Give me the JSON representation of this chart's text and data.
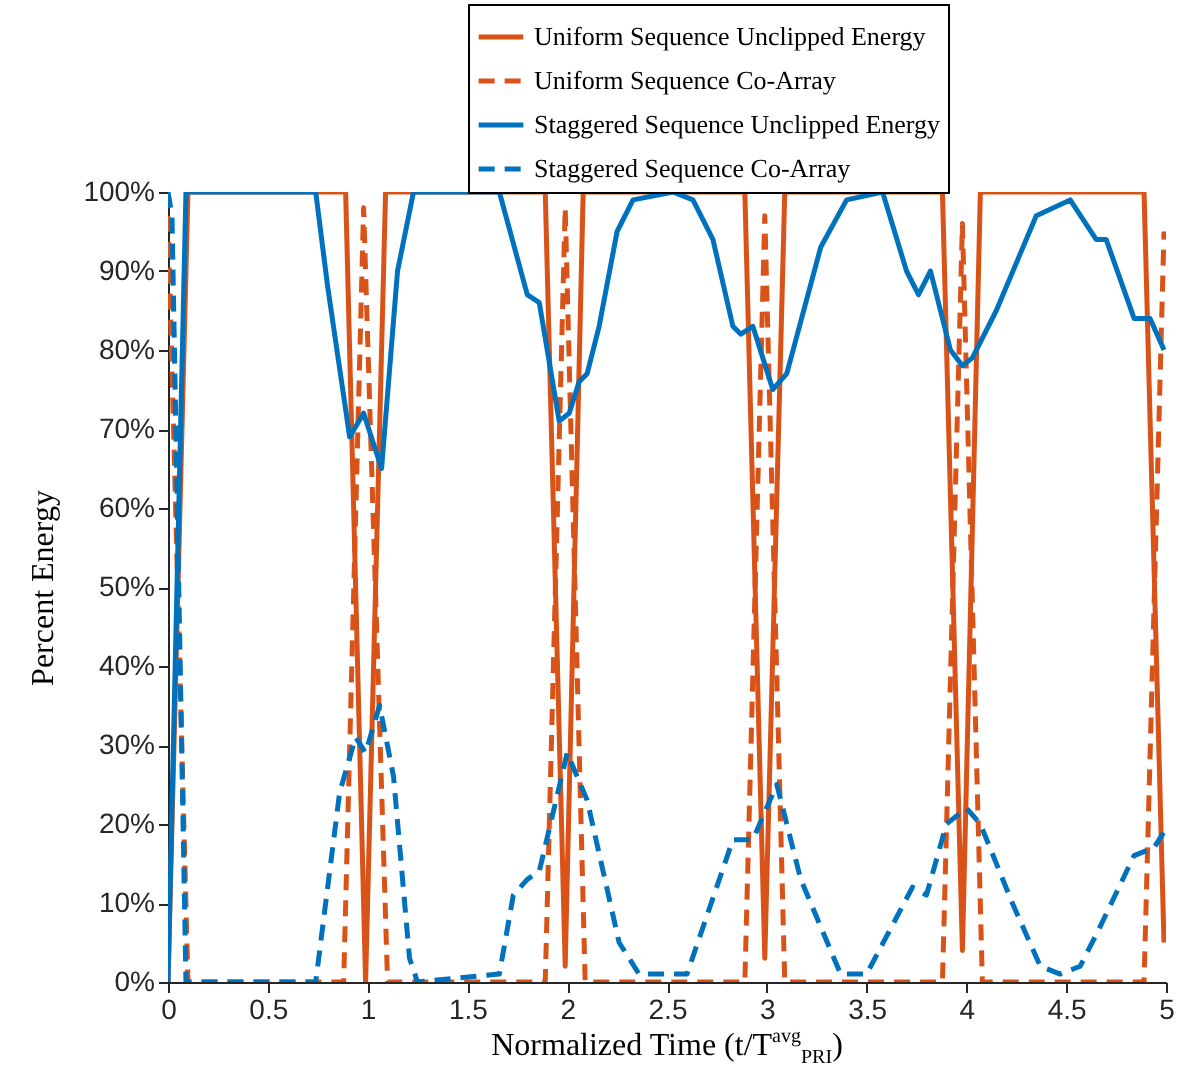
{
  "chart_data": {
    "type": "line",
    "xlabel": "Normalized Time (t/T$^{avg}$$_{PRI}$)",
    "ylabel": "Percent Energy",
    "xlim": [
      0,
      5
    ],
    "xticks": [
      0,
      0.5,
      1,
      1.5,
      2,
      2.5,
      3,
      3.5,
      4,
      4.5,
      5
    ],
    "ylim": [
      0,
      100
    ],
    "yticks": [
      {
        "value": 0,
        "label": "0%"
      },
      {
        "value": 10,
        "label": "10%"
      },
      {
        "value": 20,
        "label": "20%"
      },
      {
        "value": 30,
        "label": "30%"
      },
      {
        "value": 40,
        "label": "40%"
      },
      {
        "value": 50,
        "label": "50%"
      },
      {
        "value": 60,
        "label": "60%"
      },
      {
        "value": 70,
        "label": "70%"
      },
      {
        "value": 80,
        "label": "80%"
      },
      {
        "value": 90,
        "label": "90%"
      },
      {
        "value": 100,
        "label": "100%"
      }
    ],
    "grid": false,
    "legend": "top",
    "marker": "none",
    "series": [
      {
        "name": "Uniform Sequence Unclipped Energy",
        "color": "#d95319",
        "line_style": "solid",
        "x": [
          0,
          0.1,
          0.89,
          0.99,
          1.09,
          1.89,
          1.99,
          2.08,
          2.89,
          2.99,
          3.09,
          3.88,
          3.98,
          4.07,
          4.89,
          4.99
        ],
        "values": [
          0,
          100,
          100,
          0,
          100,
          100,
          2,
          100,
          100,
          3,
          100,
          100,
          4,
          100,
          100,
          5
        ]
      },
      {
        "name": "Uniform Sequence Co-Array",
        "color": "#d95319",
        "line_style": "dashed",
        "x": [
          0,
          0.1,
          0.88,
          0.98,
          1.1,
          1.89,
          1.99,
          2.09,
          2.89,
          2.99,
          3.09,
          3.88,
          3.98,
          4.08,
          4.89,
          4.99
        ],
        "values": [
          97,
          0,
          0,
          98,
          0,
          0,
          98,
          0,
          0,
          97,
          0,
          0,
          96,
          0,
          0,
          95
        ]
      },
      {
        "name": "Staggered Sequence Unclipped Energy",
        "color": "#0072bd",
        "line_style": "solid",
        "x": [
          0,
          0.09,
          0.74,
          0.8,
          0.91,
          0.98,
          1.07,
          1.15,
          1.23,
          1.66,
          1.8,
          1.86,
          1.96,
          2.01,
          2.06,
          2.1,
          2.16,
          2.25,
          2.33,
          2.53,
          2.63,
          2.73,
          2.83,
          2.87,
          2.93,
          3.03,
          3.1,
          3.27,
          3.4,
          3.58,
          3.7,
          3.76,
          3.82,
          3.92,
          3.98,
          4.03,
          4.15,
          4.25,
          4.35,
          4.52,
          4.65,
          4.7,
          4.84,
          4.92,
          4.99
        ],
        "values": [
          0,
          100,
          100,
          88,
          69,
          72,
          65,
          90,
          100,
          100,
          87,
          86,
          71,
          72,
          76,
          77,
          83,
          95,
          99,
          100,
          99,
          94,
          83,
          82,
          83,
          75,
          77,
          93,
          99,
          100,
          90,
          87,
          90,
          80,
          78,
          79,
          85,
          91,
          97,
          99,
          94,
          94,
          84,
          84,
          80
        ]
      },
      {
        "name": "Staggered Sequence Co-Array",
        "color": "#0072bd",
        "line_style": "dashed",
        "x": [
          0,
          0.02,
          0.09,
          0.74,
          0.86,
          0.94,
          0.99,
          1.06,
          1.13,
          1.21,
          1.25,
          1.66,
          1.73,
          1.8,
          1.86,
          2,
          2.1,
          2.26,
          2.36,
          2.6,
          2.83,
          2.93,
          3.05,
          3.17,
          3.37,
          3.5,
          3.73,
          3.8,
          3.9,
          4,
          4.07,
          4.23,
          4.37,
          4.47,
          4.57,
          4.67,
          4.84,
          4.94,
          4.99
        ],
        "values": [
          100,
          97,
          0,
          0,
          24,
          31,
          29,
          35,
          26,
          3,
          0,
          1,
          11,
          13,
          14,
          29,
          23,
          5,
          1,
          1,
          18,
          18,
          25,
          13,
          1,
          1,
          12,
          11,
          20,
          22,
          20,
          10,
          2,
          1,
          2,
          7,
          16,
          17,
          19
        ]
      }
    ]
  }
}
